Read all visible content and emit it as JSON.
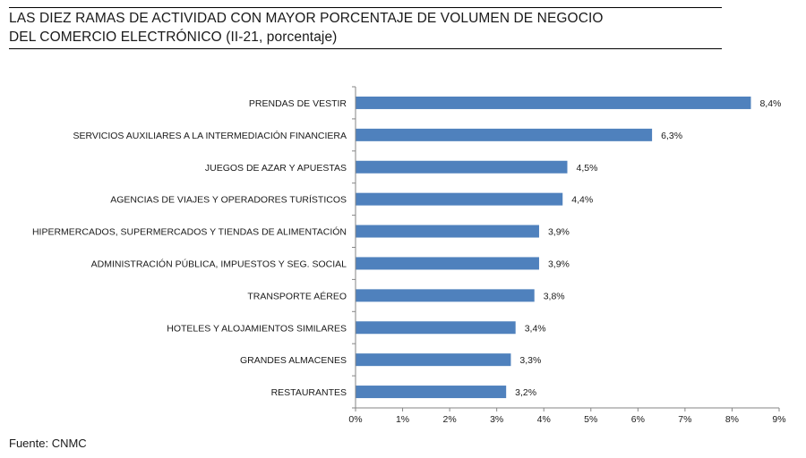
{
  "header": {
    "title_line1": "LAS DIEZ RAMAS DE ACTIVIDAD CON MAYOR PORCENTAJE DE VOLUMEN DE NEGOCIO",
    "title_line2": "DEL COMERCIO ELECTRÓNICO (II-21, porcentaje)"
  },
  "footer": {
    "source": "Fuente: CNMC"
  },
  "colors": {
    "bar": "#4f81bd",
    "axis": "#868686",
    "text": "#1a1a1a"
  },
  "chart_data": {
    "type": "bar",
    "orientation": "horizontal",
    "title": "LAS DIEZ RAMAS DE ACTIVIDAD CON MAYOR PORCENTAJE DE VOLUMEN DE NEGOCIO DEL COMERCIO ELECTRÓNICO (II-21, porcentaje)",
    "categories": [
      "PRENDAS DE VESTIR",
      "SERVICIOS AUXILIARES A LA INTERMEDIACIÓN FINANCIERA",
      "JUEGOS DE AZAR Y APUESTAS",
      "AGENCIAS DE VIAJES Y OPERADORES TURÍSTICOS",
      "HIPERMERCADOS, SUPERMERCADOS Y TIENDAS DE ALIMENTACIÓN",
      "ADMINISTRACIÓN PÚBLICA, IMPUESTOS Y SEG. SOCIAL",
      "TRANSPORTE AÉREO",
      "HOTELES  Y ALOJAMIENTOS SIMILARES",
      "GRANDES ALMACENES",
      "RESTAURANTES"
    ],
    "values": [
      8.4,
      6.3,
      4.5,
      4.4,
      3.9,
      3.9,
      3.8,
      3.4,
      3.3,
      3.2
    ],
    "value_labels": [
      "8,4%",
      "6,3%",
      "4,5%",
      "4,4%",
      "3,9%",
      "3,9%",
      "3,8%",
      "3,4%",
      "3,3%",
      "3,2%"
    ],
    "xlim": [
      0,
      9
    ],
    "x_ticks": [
      "0%",
      "1%",
      "2%",
      "3%",
      "4%",
      "5%",
      "6%",
      "7%",
      "8%",
      "9%"
    ],
    "xlabel": "",
    "ylabel": "",
    "grid": false,
    "legend": "none"
  }
}
